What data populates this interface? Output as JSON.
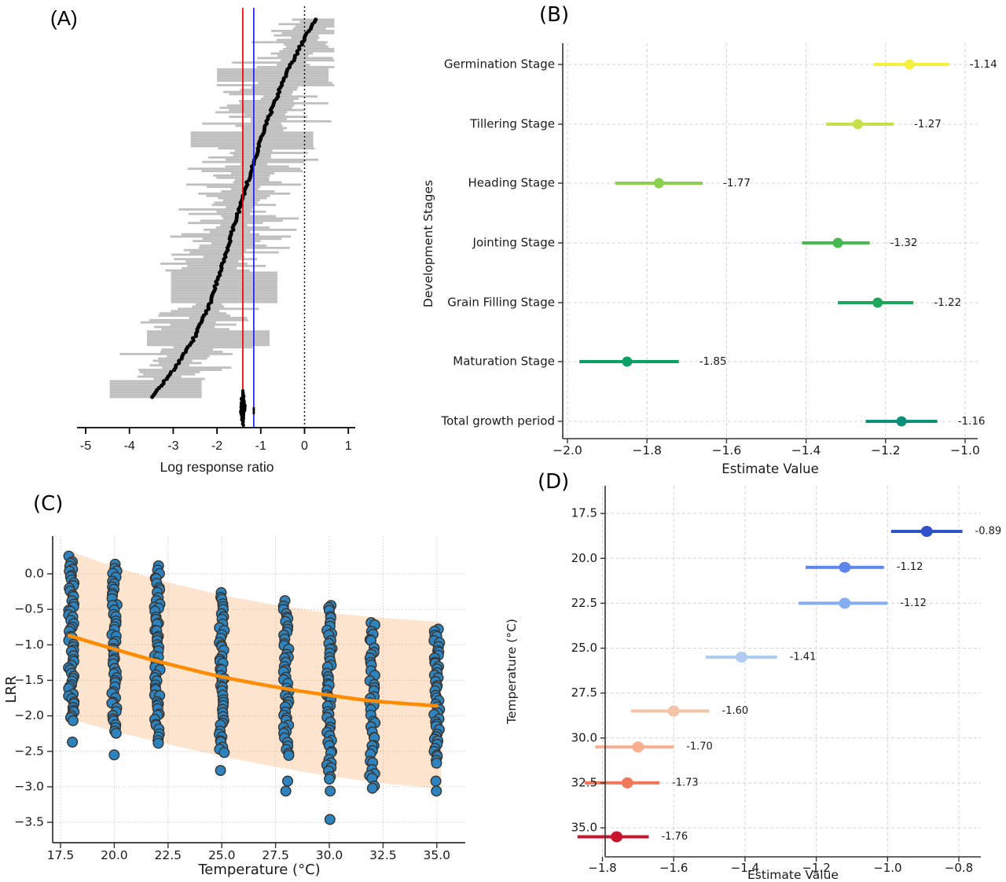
{
  "figure": {
    "panel_labels": {
      "a": "(A)",
      "b": "(B)",
      "c": "(C)",
      "d": "(D)"
    }
  },
  "chart_data": [
    {
      "id": "A",
      "type": "scatter",
      "subtype": "caterpillar-forest-plot",
      "panel_label": "(A)",
      "xlabel": "Log response ratio",
      "x_ticks": [
        -5,
        -4,
        -3,
        -2,
        -1,
        0,
        1
      ],
      "x_tick_labels": [
        "-5",
        "-4",
        "-3",
        "-2",
        "-1",
        "0",
        "1"
      ],
      "xlim": [
        -5.2,
        1.3
      ],
      "n_studies": 168,
      "estimates_percentile_anchors": {
        "fractions": [
          0,
          0.05,
          0.15,
          0.3,
          0.45,
          0.6,
          0.75,
          0.85,
          0.93,
          1
        ],
        "values": [
          0.25,
          0.0,
          -0.45,
          -0.95,
          -1.35,
          -1.75,
          -2.15,
          -2.55,
          -3.0,
          -3.5
        ]
      },
      "ci_halfwidth_range": [
        0.3,
        1.5
      ],
      "ci_right_clamp": 0.68,
      "ci_left_clamp": -4.5,
      "wide_ci_blocks": [
        {
          "rows": [
            22,
            27
          ],
          "lo": -2.0,
          "hi": 0.55
        },
        {
          "rows": [
            50,
            56
          ],
          "lo": -2.6,
          "hi": 0.2
        },
        {
          "rows": [
            112,
            125
          ],
          "lo": -3.05,
          "hi": -0.62
        },
        {
          "rows": [
            138,
            144
          ],
          "lo": -3.6,
          "hi": -0.8
        },
        {
          "rows": [
            160,
            167
          ],
          "lo": -4.45,
          "hi": -2.35
        }
      ],
      "reference_lines": {
        "red": -1.41,
        "blue": -1.16,
        "dotted_zero": 0
      },
      "summary_cluster": {
        "x": -1.41,
        "n": 26,
        "tick_x": -1.16
      },
      "colors": {
        "ci_bar": "#BFBFBF",
        "point": "#000000",
        "red_line": "#F00000",
        "blue_line": "#2020F0",
        "zero_line": "#000000"
      }
    },
    {
      "id": "B",
      "type": "scatter",
      "subtype": "dot-and-error-bar",
      "panel_label": "(B)",
      "xlabel": "Estimate Value",
      "ylabel": "Development Stages",
      "x_ticks": [
        -2.0,
        -1.8,
        -1.6,
        -1.4,
        -1.2,
        -1.0
      ],
      "x_tick_labels": [
        "−2.0",
        "−1.8",
        "−1.6",
        "−1.4",
        "−1.2",
        "−1.0"
      ],
      "xlim": [
        -2.01,
        -0.97
      ],
      "rows": [
        {
          "category": "Germination Stage",
          "value": -1.14,
          "label": "-1.14",
          "ci": [
            -1.23,
            -1.04
          ],
          "color": "#F5F03D"
        },
        {
          "category": "Tillering Stage",
          "value": -1.27,
          "label": "-1.27",
          "ci": [
            -1.35,
            -1.18
          ],
          "color": "#C6E24A"
        },
        {
          "category": "Heading Stage",
          "value": -1.77,
          "label": "-1.77",
          "ci": [
            -1.88,
            -1.66
          ],
          "color": "#8CD14E"
        },
        {
          "category": "Jointing Stage",
          "value": -1.32,
          "label": "-1.32",
          "ci": [
            -1.41,
            -1.24
          ],
          "color": "#46BA50"
        },
        {
          "category": "Grain Filling Stage",
          "value": -1.22,
          "label": "-1.22",
          "ci": [
            -1.32,
            -1.13
          ],
          "color": "#1CA75B"
        },
        {
          "category": "Maturation Stage",
          "value": -1.85,
          "label": "-1.85",
          "ci": [
            -1.97,
            -1.72
          ],
          "color": "#0AA164"
        },
        {
          "category": "Total growth period",
          "value": -1.16,
          "label": "-1.16",
          "ci": [
            -1.25,
            -1.07
          ],
          "color": "#0E9078"
        }
      ],
      "grid": "dashed-both-directions"
    },
    {
      "id": "C",
      "type": "scatter",
      "subtype": "scatter-with-regression-band",
      "panel_label": "(C)",
      "xlabel": "Temperature (°C)",
      "ylabel": "LRR",
      "x_ticks": [
        17.5,
        20,
        22.5,
        25,
        27.5,
        30,
        32.5,
        35
      ],
      "x_tick_labels": [
        "17.5",
        "20.0",
        "22.5",
        "25.0",
        "27.5",
        "30.0",
        "32.5",
        "35.0"
      ],
      "y_ticks": [
        0,
        -0.5,
        -1,
        -1.5,
        -2,
        -2.5,
        -3,
        -3.5
      ],
      "y_tick_labels": [
        "0.0",
        "−0.5",
        "−1.0",
        "−1.5",
        "−2.0",
        "−2.5",
        "−3.0",
        "−3.5"
      ],
      "point_columns": [
        {
          "x": 18,
          "n": 58,
          "y_top": 0.25,
          "y_bottom": -2.1,
          "outliers": [
            -2.37
          ]
        },
        {
          "x": 20,
          "n": 52,
          "y_top": 0.17,
          "y_bottom": -2.28,
          "outliers": [
            -2.55
          ]
        },
        {
          "x": 22,
          "n": 55,
          "y_top": 0.12,
          "y_bottom": -2.4,
          "outliers": []
        },
        {
          "x": 25,
          "n": 48,
          "y_top": -0.25,
          "y_bottom": -2.55,
          "outliers": [
            -2.77
          ]
        },
        {
          "x": 28,
          "n": 46,
          "y_top": -0.37,
          "y_bottom": -2.58,
          "outliers": [
            -2.92,
            -3.06
          ]
        },
        {
          "x": 30,
          "n": 50,
          "y_top": -0.4,
          "y_bottom": -2.92,
          "outliers": [
            -3.06,
            -3.46
          ]
        },
        {
          "x": 32,
          "n": 42,
          "y_top": -0.65,
          "y_bottom": -3.05,
          "outliers": []
        },
        {
          "x": 35,
          "n": 46,
          "y_top": -0.75,
          "y_bottom": -2.68,
          "outliers": [
            -2.92,
            -3.06
          ]
        }
      ],
      "trend_line": {
        "x": [
          17.9,
          20,
          22,
          25,
          28,
          30,
          32,
          35
        ],
        "y": [
          -0.87,
          -1.06,
          -1.23,
          -1.45,
          -1.62,
          -1.71,
          -1.79,
          -1.86
        ]
      },
      "confidence_band": {
        "x": [
          17.9,
          20,
          22.5,
          25,
          27.5,
          30,
          32.5,
          35.2
        ],
        "upper": [
          0.32,
          0.1,
          -0.12,
          -0.3,
          -0.44,
          -0.55,
          -0.62,
          -0.68
        ],
        "lower": [
          -2.04,
          -2.22,
          -2.4,
          -2.57,
          -2.72,
          -2.85,
          -2.95,
          -3.03
        ]
      },
      "colors": {
        "point_fill": "#2D83BE",
        "point_edge": "#38332E",
        "trend": "#FF8C00",
        "band": "#F7A65C"
      }
    },
    {
      "id": "D",
      "type": "scatter",
      "subtype": "dot-and-error-bar",
      "panel_label": "(D)",
      "xlabel": "Estimate Value",
      "ylabel": "Temperature (°C)",
      "x_ticks": [
        -1.8,
        -1.6,
        -1.4,
        -1.2,
        -1.0,
        -0.8
      ],
      "x_tick_labels": [
        "−1.8",
        "−1.6",
        "−1.4",
        "−1.2",
        "−1.0",
        "−0.8"
      ],
      "y_ticks": [
        17.5,
        20,
        22.5,
        25,
        27.5,
        30,
        32.5,
        35
      ],
      "y_tick_labels": [
        "17.5",
        "20.0",
        "22.5",
        "25.0",
        "27.5",
        "30.0",
        "32.5",
        "35.0"
      ],
      "y_axis_inverted": true,
      "rows": [
        {
          "temperature": 18,
          "value": -0.89,
          "label": "-0.89",
          "ci": [
            -0.99,
            -0.79
          ],
          "color": "#2F52C8"
        },
        {
          "temperature": 20,
          "value": -1.12,
          "label": "-1.12",
          "ci": [
            -1.23,
            -1.01
          ],
          "color": "#5C86EC"
        },
        {
          "temperature": 22,
          "value": -1.12,
          "label": "-1.12",
          "ci": [
            -1.25,
            -1.0
          ],
          "color": "#85AEF2"
        },
        {
          "temperature": 25,
          "value": -1.41,
          "label": "-1.41",
          "ci": [
            -1.51,
            -1.31
          ],
          "color": "#AECBF0"
        },
        {
          "temperature": 28,
          "value": -1.6,
          "label": "-1.60",
          "ci": [
            -1.72,
            -1.5
          ],
          "color": "#F4C3A8"
        },
        {
          "temperature": 30,
          "value": -1.7,
          "label": "-1.70",
          "ci": [
            -1.82,
            -1.6
          ],
          "color": "#F8AE8F"
        },
        {
          "temperature": 32,
          "value": -1.73,
          "label": "-1.73",
          "ci": [
            -1.85,
            -1.64
          ],
          "color": "#F3785A"
        },
        {
          "temperature": 35,
          "value": -1.76,
          "label": "-1.76",
          "ci": [
            -1.87,
            -1.67
          ],
          "color": "#C9152B"
        }
      ],
      "grid": "dashed-both-directions"
    }
  ]
}
